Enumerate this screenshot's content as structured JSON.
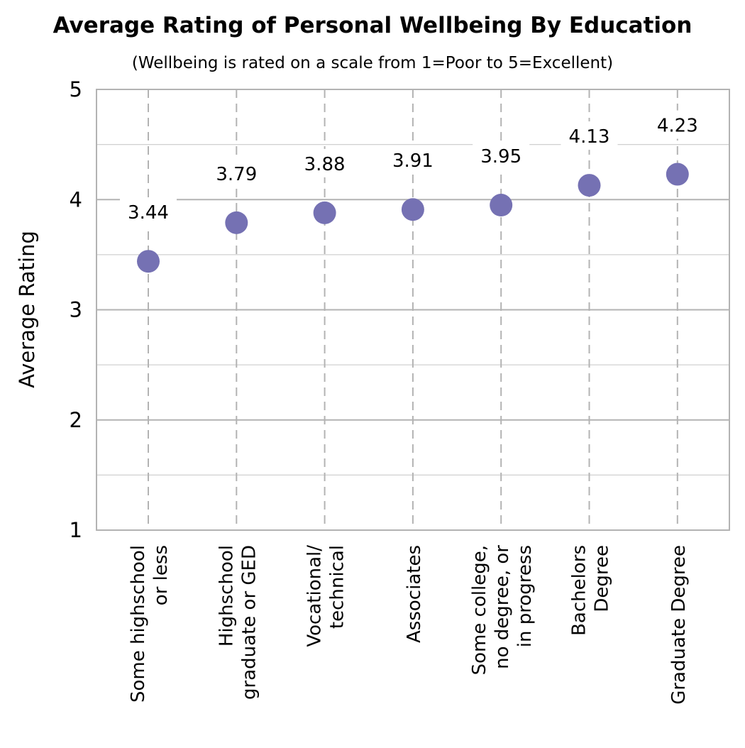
{
  "chart_data": {
    "type": "scatter",
    "title": "Average Rating of Personal Wellbeing By Education",
    "subtitle": "(Wellbeing is rated on a scale from 1=Poor to 5=Excellent)",
    "xlabel": "",
    "ylabel": "Average Rating",
    "ylim": [
      1,
      5
    ],
    "yticks": [
      "1",
      "2",
      "3",
      "4",
      "5"
    ],
    "grid": true,
    "categories": [
      [
        "Some highschool",
        "or less"
      ],
      [
        "Highschool",
        "graduate or GED"
      ],
      [
        "Vocational/",
        "technical"
      ],
      [
        "Associates"
      ],
      [
        "Some college,",
        "no degree, or",
        "in progress"
      ],
      [
        "Bachelors",
        "Degree"
      ],
      [
        "Graduate Degree"
      ]
    ],
    "values": [
      3.44,
      3.79,
      3.88,
      3.91,
      3.95,
      4.13,
      4.23
    ],
    "data_labels": [
      "3.44",
      "3.79",
      "3.88",
      "3.91",
      "3.95",
      "4.13",
      "4.23"
    ],
    "marker_color": "#7571b3"
  }
}
